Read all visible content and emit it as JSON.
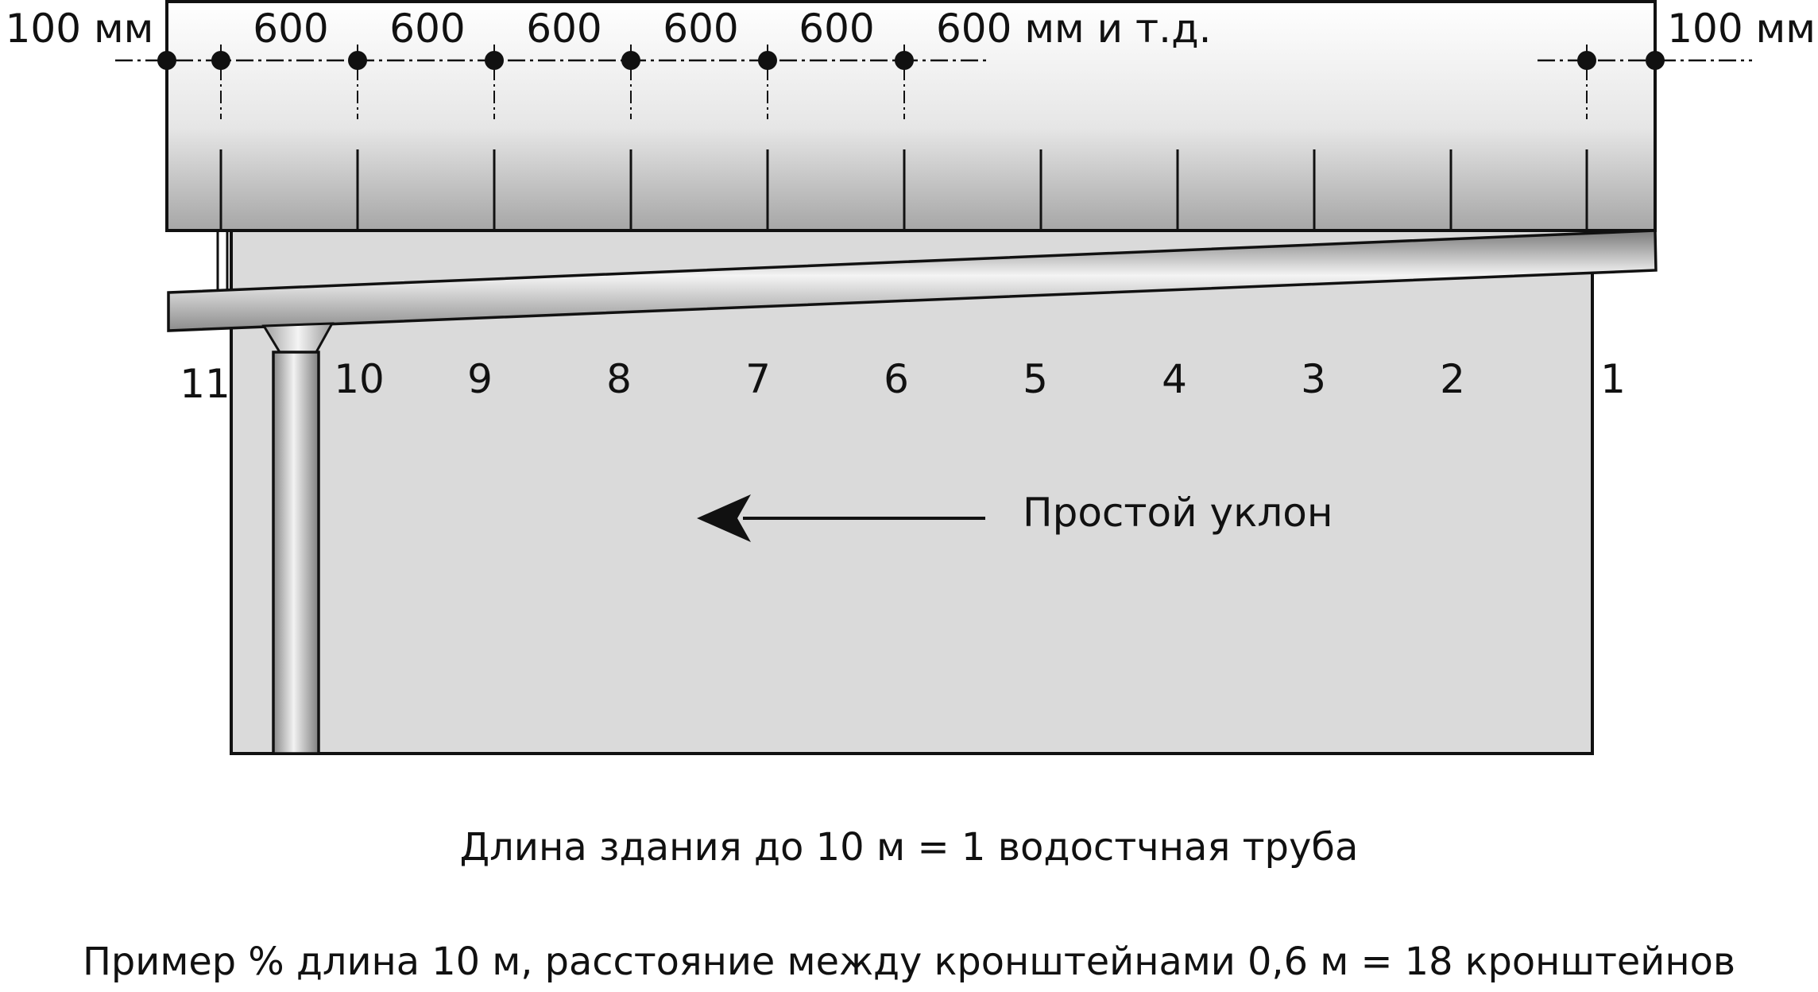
{
  "top_dimensions": {
    "edge_left": "100 мм",
    "edge_right": "100 мм",
    "spacings": [
      "600",
      "600",
      "600",
      "600",
      "600"
    ],
    "spacing_last": "600 мм и т.д."
  },
  "bracket_numbers": [
    "11",
    "10",
    "9",
    "8",
    "7",
    "6",
    "5",
    "4",
    "3",
    "2",
    "1"
  ],
  "slope_label": "Простой уклон",
  "caption_1": "Длина здания до 10 м = 1 водостчная труба",
  "caption_2": "Пример % длина 10 м, расстояние между кронштейнами 0,6 м = 18 кронштейнов",
  "colors": {
    "wall": "#dadada",
    "roof_top": "#ffffff",
    "roof_bottom": "#a9a9a9",
    "stroke": "#111111"
  },
  "icons": [
    "arrow-left-icon"
  ]
}
